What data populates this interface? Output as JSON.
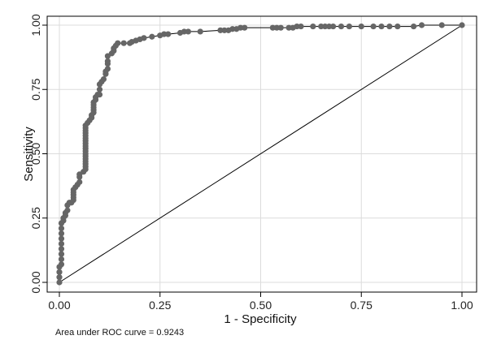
{
  "chart_data": {
    "type": "line",
    "title": "",
    "xlabel": "1 - Specificity",
    "ylabel": "Sensitivity",
    "xlim": [
      0,
      1
    ],
    "ylim": [
      0,
      1
    ],
    "xticks": [
      "0.00",
      "0.25",
      "0.50",
      "0.75",
      "1.00"
    ],
    "yticks": [
      "0.00",
      "0.25",
      "0.50",
      "0.75",
      "1.00"
    ],
    "grid": true,
    "legend": "none",
    "annotation": "Area under ROC curve = 0.9243",
    "colors": {
      "curve": "#666666",
      "line": "#000000",
      "grid": "#dcdcdc"
    },
    "series": [
      {
        "kind": "roc-curve",
        "points": [
          [
            0.0,
            0.0
          ],
          [
            0.0,
            0.02
          ],
          [
            0.0,
            0.04
          ],
          [
            0.0,
            0.06
          ],
          [
            0.005,
            0.07
          ],
          [
            0.005,
            0.09
          ],
          [
            0.005,
            0.11
          ],
          [
            0.005,
            0.13
          ],
          [
            0.005,
            0.15
          ],
          [
            0.005,
            0.17
          ],
          [
            0.005,
            0.19
          ],
          [
            0.005,
            0.21
          ],
          [
            0.005,
            0.23
          ],
          [
            0.01,
            0.24
          ],
          [
            0.01,
            0.25
          ],
          [
            0.015,
            0.26
          ],
          [
            0.015,
            0.27
          ],
          [
            0.02,
            0.28
          ],
          [
            0.02,
            0.3
          ],
          [
            0.025,
            0.31
          ],
          [
            0.03,
            0.31
          ],
          [
            0.035,
            0.32
          ],
          [
            0.035,
            0.33
          ],
          [
            0.035,
            0.34
          ],
          [
            0.035,
            0.35
          ],
          [
            0.035,
            0.36
          ],
          [
            0.04,
            0.37
          ],
          [
            0.045,
            0.38
          ],
          [
            0.05,
            0.39
          ],
          [
            0.05,
            0.41
          ],
          [
            0.05,
            0.42
          ],
          [
            0.06,
            0.43
          ],
          [
            0.065,
            0.44
          ],
          [
            0.065,
            0.45
          ],
          [
            0.065,
            0.46
          ],
          [
            0.065,
            0.47
          ],
          [
            0.065,
            0.48
          ],
          [
            0.065,
            0.49
          ],
          [
            0.065,
            0.5
          ],
          [
            0.065,
            0.51
          ],
          [
            0.065,
            0.52
          ],
          [
            0.065,
            0.53
          ],
          [
            0.065,
            0.54
          ],
          [
            0.065,
            0.55
          ],
          [
            0.065,
            0.56
          ],
          [
            0.065,
            0.57
          ],
          [
            0.065,
            0.58
          ],
          [
            0.065,
            0.59
          ],
          [
            0.065,
            0.6
          ],
          [
            0.065,
            0.61
          ],
          [
            0.07,
            0.62
          ],
          [
            0.075,
            0.63
          ],
          [
            0.08,
            0.64
          ],
          [
            0.08,
            0.65
          ],
          [
            0.085,
            0.66
          ],
          [
            0.085,
            0.67
          ],
          [
            0.085,
            0.68
          ],
          [
            0.085,
            0.69
          ],
          [
            0.085,
            0.7
          ],
          [
            0.09,
            0.71
          ],
          [
            0.09,
            0.72
          ],
          [
            0.095,
            0.73
          ],
          [
            0.1,
            0.73
          ],
          [
            0.1,
            0.75
          ],
          [
            0.1,
            0.77
          ],
          [
            0.105,
            0.78
          ],
          [
            0.11,
            0.79
          ],
          [
            0.115,
            0.81
          ],
          [
            0.115,
            0.82
          ],
          [
            0.12,
            0.83
          ],
          [
            0.12,
            0.85
          ],
          [
            0.12,
            0.86
          ],
          [
            0.12,
            0.88
          ],
          [
            0.13,
            0.89
          ],
          [
            0.135,
            0.9
          ],
          [
            0.135,
            0.91
          ],
          [
            0.14,
            0.92
          ],
          [
            0.145,
            0.93
          ],
          [
            0.16,
            0.93
          ],
          [
            0.175,
            0.93
          ],
          [
            0.18,
            0.935
          ],
          [
            0.19,
            0.94
          ],
          [
            0.2,
            0.945
          ],
          [
            0.21,
            0.95
          ],
          [
            0.23,
            0.955
          ],
          [
            0.25,
            0.96
          ],
          [
            0.26,
            0.965
          ],
          [
            0.27,
            0.965
          ],
          [
            0.3,
            0.97
          ],
          [
            0.31,
            0.975
          ],
          [
            0.32,
            0.975
          ],
          [
            0.35,
            0.975
          ],
          [
            0.4,
            0.98
          ],
          [
            0.41,
            0.98
          ],
          [
            0.42,
            0.98
          ],
          [
            0.43,
            0.985
          ],
          [
            0.44,
            0.985
          ],
          [
            0.45,
            0.99
          ],
          [
            0.46,
            0.99
          ],
          [
            0.53,
            0.99
          ],
          [
            0.54,
            0.99
          ],
          [
            0.55,
            0.99
          ],
          [
            0.57,
            0.99
          ],
          [
            0.58,
            0.99
          ],
          [
            0.59,
            0.995
          ],
          [
            0.6,
            0.995
          ],
          [
            0.63,
            0.995
          ],
          [
            0.65,
            0.995
          ],
          [
            0.66,
            0.995
          ],
          [
            0.67,
            0.995
          ],
          [
            0.68,
            0.995
          ],
          [
            0.7,
            0.995
          ],
          [
            0.72,
            0.995
          ],
          [
            0.75,
            0.995
          ],
          [
            0.78,
            0.995
          ],
          [
            0.8,
            0.995
          ],
          [
            0.82,
            0.995
          ],
          [
            0.84,
            0.995
          ],
          [
            0.88,
            0.995
          ],
          [
            0.9,
            1.0
          ],
          [
            0.95,
            1.0
          ],
          [
            1.0,
            1.0
          ]
        ]
      },
      {
        "kind": "reference-line",
        "points": [
          [
            0,
            0
          ],
          [
            1,
            1
          ]
        ]
      }
    ]
  }
}
